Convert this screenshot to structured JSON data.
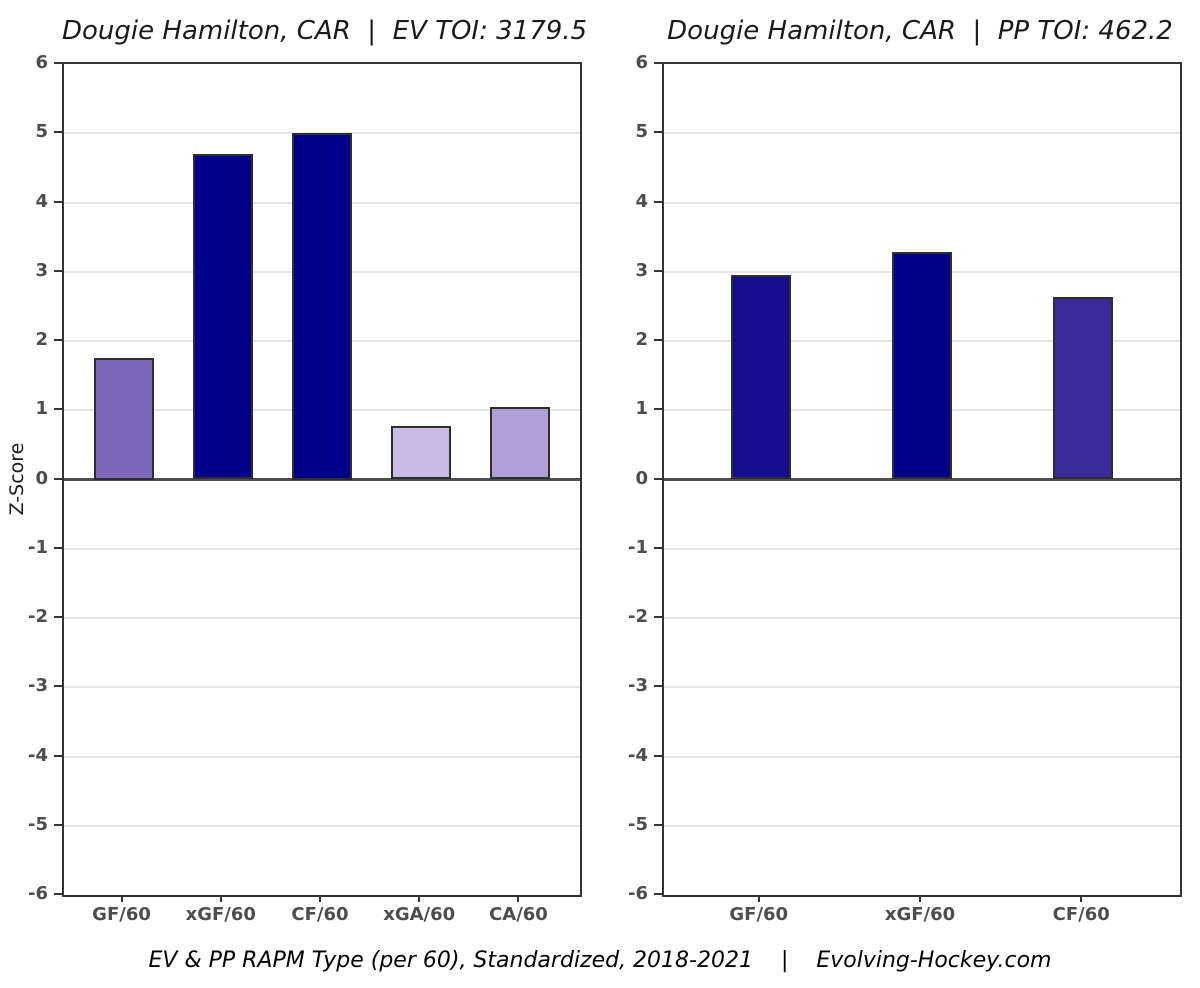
{
  "page": {
    "background": "#FFFFFF"
  },
  "caption": {
    "text": "EV & PP RAPM Type (per 60), Standardized, 2018-2021    |    Evolving-Hockey.com"
  },
  "colors": {
    "panel_border": "#333333",
    "gridline": "#E4E4E4",
    "zero_line": "#4D4D4D",
    "tick_mark": "#333333",
    "tick_label": "#4D4D4D",
    "axis_title": "#1A1A1A",
    "title_text": "#1A1A1A",
    "bar_border": "#2E2E2E"
  },
  "chart_data": [
    {
      "type": "bar",
      "title": "Dougie Hamilton, CAR  |  EV TOI: 3179.5",
      "ylabel": "Z-Score",
      "xlabel": "",
      "categories": [
        "GF/60",
        "xGF/60",
        "CF/60",
        "xGA/60",
        "CA/60"
      ],
      "values": [
        1.75,
        4.7,
        5.0,
        0.77,
        1.04
      ],
      "bar_colors": [
        "#7E68BC",
        "#00008B",
        "#00008B",
        "#C9BCE4",
        "#B19FD9"
      ],
      "ylim": [
        -6,
        6
      ],
      "ytick_step": 1,
      "grid": "horizontal-major",
      "legend": "none"
    },
    {
      "type": "bar",
      "title": "Dougie Hamilton, CAR  |  PP TOI: 462.2",
      "ylabel": "",
      "xlabel": "",
      "categories": [
        "GF/60",
        "xGF/60",
        "CF/60"
      ],
      "values": [
        2.95,
        3.28,
        2.63
      ],
      "bar_colors": [
        "#150D8D",
        "#00008B",
        "#3A2A9B"
      ],
      "ylim": [
        -6,
        6
      ],
      "ytick_step": 1,
      "grid": "horizontal-major",
      "legend": "none"
    }
  ]
}
